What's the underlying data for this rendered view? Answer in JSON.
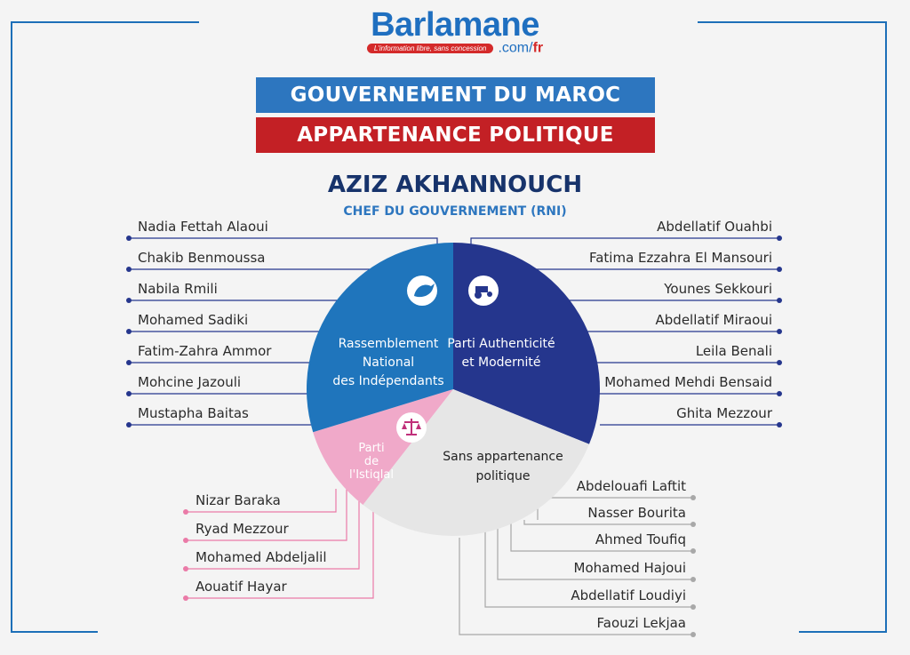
{
  "logo": {
    "brand": "Barlamane",
    "tagline": "L'information libre, sans concession",
    "domain": ".com/",
    "domain_suffix": "fr"
  },
  "banners": {
    "title": "GOUVERNEMENT DU MAROC",
    "subtitle": "APPARTENANCE POLITIQUE"
  },
  "head": {
    "name": "AZIZ AKHANNOUCH",
    "role": "CHEF DU GOUVERNEMENT (RNI)"
  },
  "colors": {
    "rni": "#1f75bc",
    "pam": "#25368d",
    "istiqlal": "#f0a9c9",
    "independent": "#e6e6e6",
    "dark_line": "#25368d",
    "pink_line": "#ea7aa7",
    "grey_line": "#a8a8a8"
  },
  "parties": [
    {
      "key": "rni",
      "label": [
        "Rassemblement",
        "National",
        "des Indépendants"
      ],
      "icon": "dove-icon",
      "members": [
        "Nadia Fettah Alaoui",
        "Chakib Benmoussa",
        "Nabila Rmili",
        "Mohamed Sadiki",
        "Fatim-Zahra Ammor",
        "Mohcine Jazouli",
        "Mustapha Baitas"
      ]
    },
    {
      "key": "pam",
      "label": [
        "Parti Authenticité",
        "et Modernité"
      ],
      "icon": "tractor-icon",
      "members": [
        "Abdellatif Ouahbi",
        "Fatima Ezzahra El Mansouri",
        "Younes Sekkouri",
        "Abdellatif Miraoui",
        "Leila Benali",
        "Mohamed Mehdi Bensaid",
        "Ghita Mezzour"
      ]
    },
    {
      "key": "istiqlal",
      "label": [
        "Parti",
        "de",
        "l'Istiqlal"
      ],
      "icon": "scales-icon",
      "members": [
        "Nizar Baraka",
        "Ryad Mezzour",
        "Mohamed Abdeljalil",
        "Aouatif Hayar"
      ]
    },
    {
      "key": "independent",
      "label": [
        "Sans appartenance",
        "politique"
      ],
      "icon": "",
      "members": [
        "Abdelouafi Laftit",
        "Nasser Bourita",
        "Ahmed Toufiq",
        "Mohamed Hajoui",
        "Abdellatif Loudiyi",
        "Faouzi Lekjaa"
      ]
    }
  ]
}
